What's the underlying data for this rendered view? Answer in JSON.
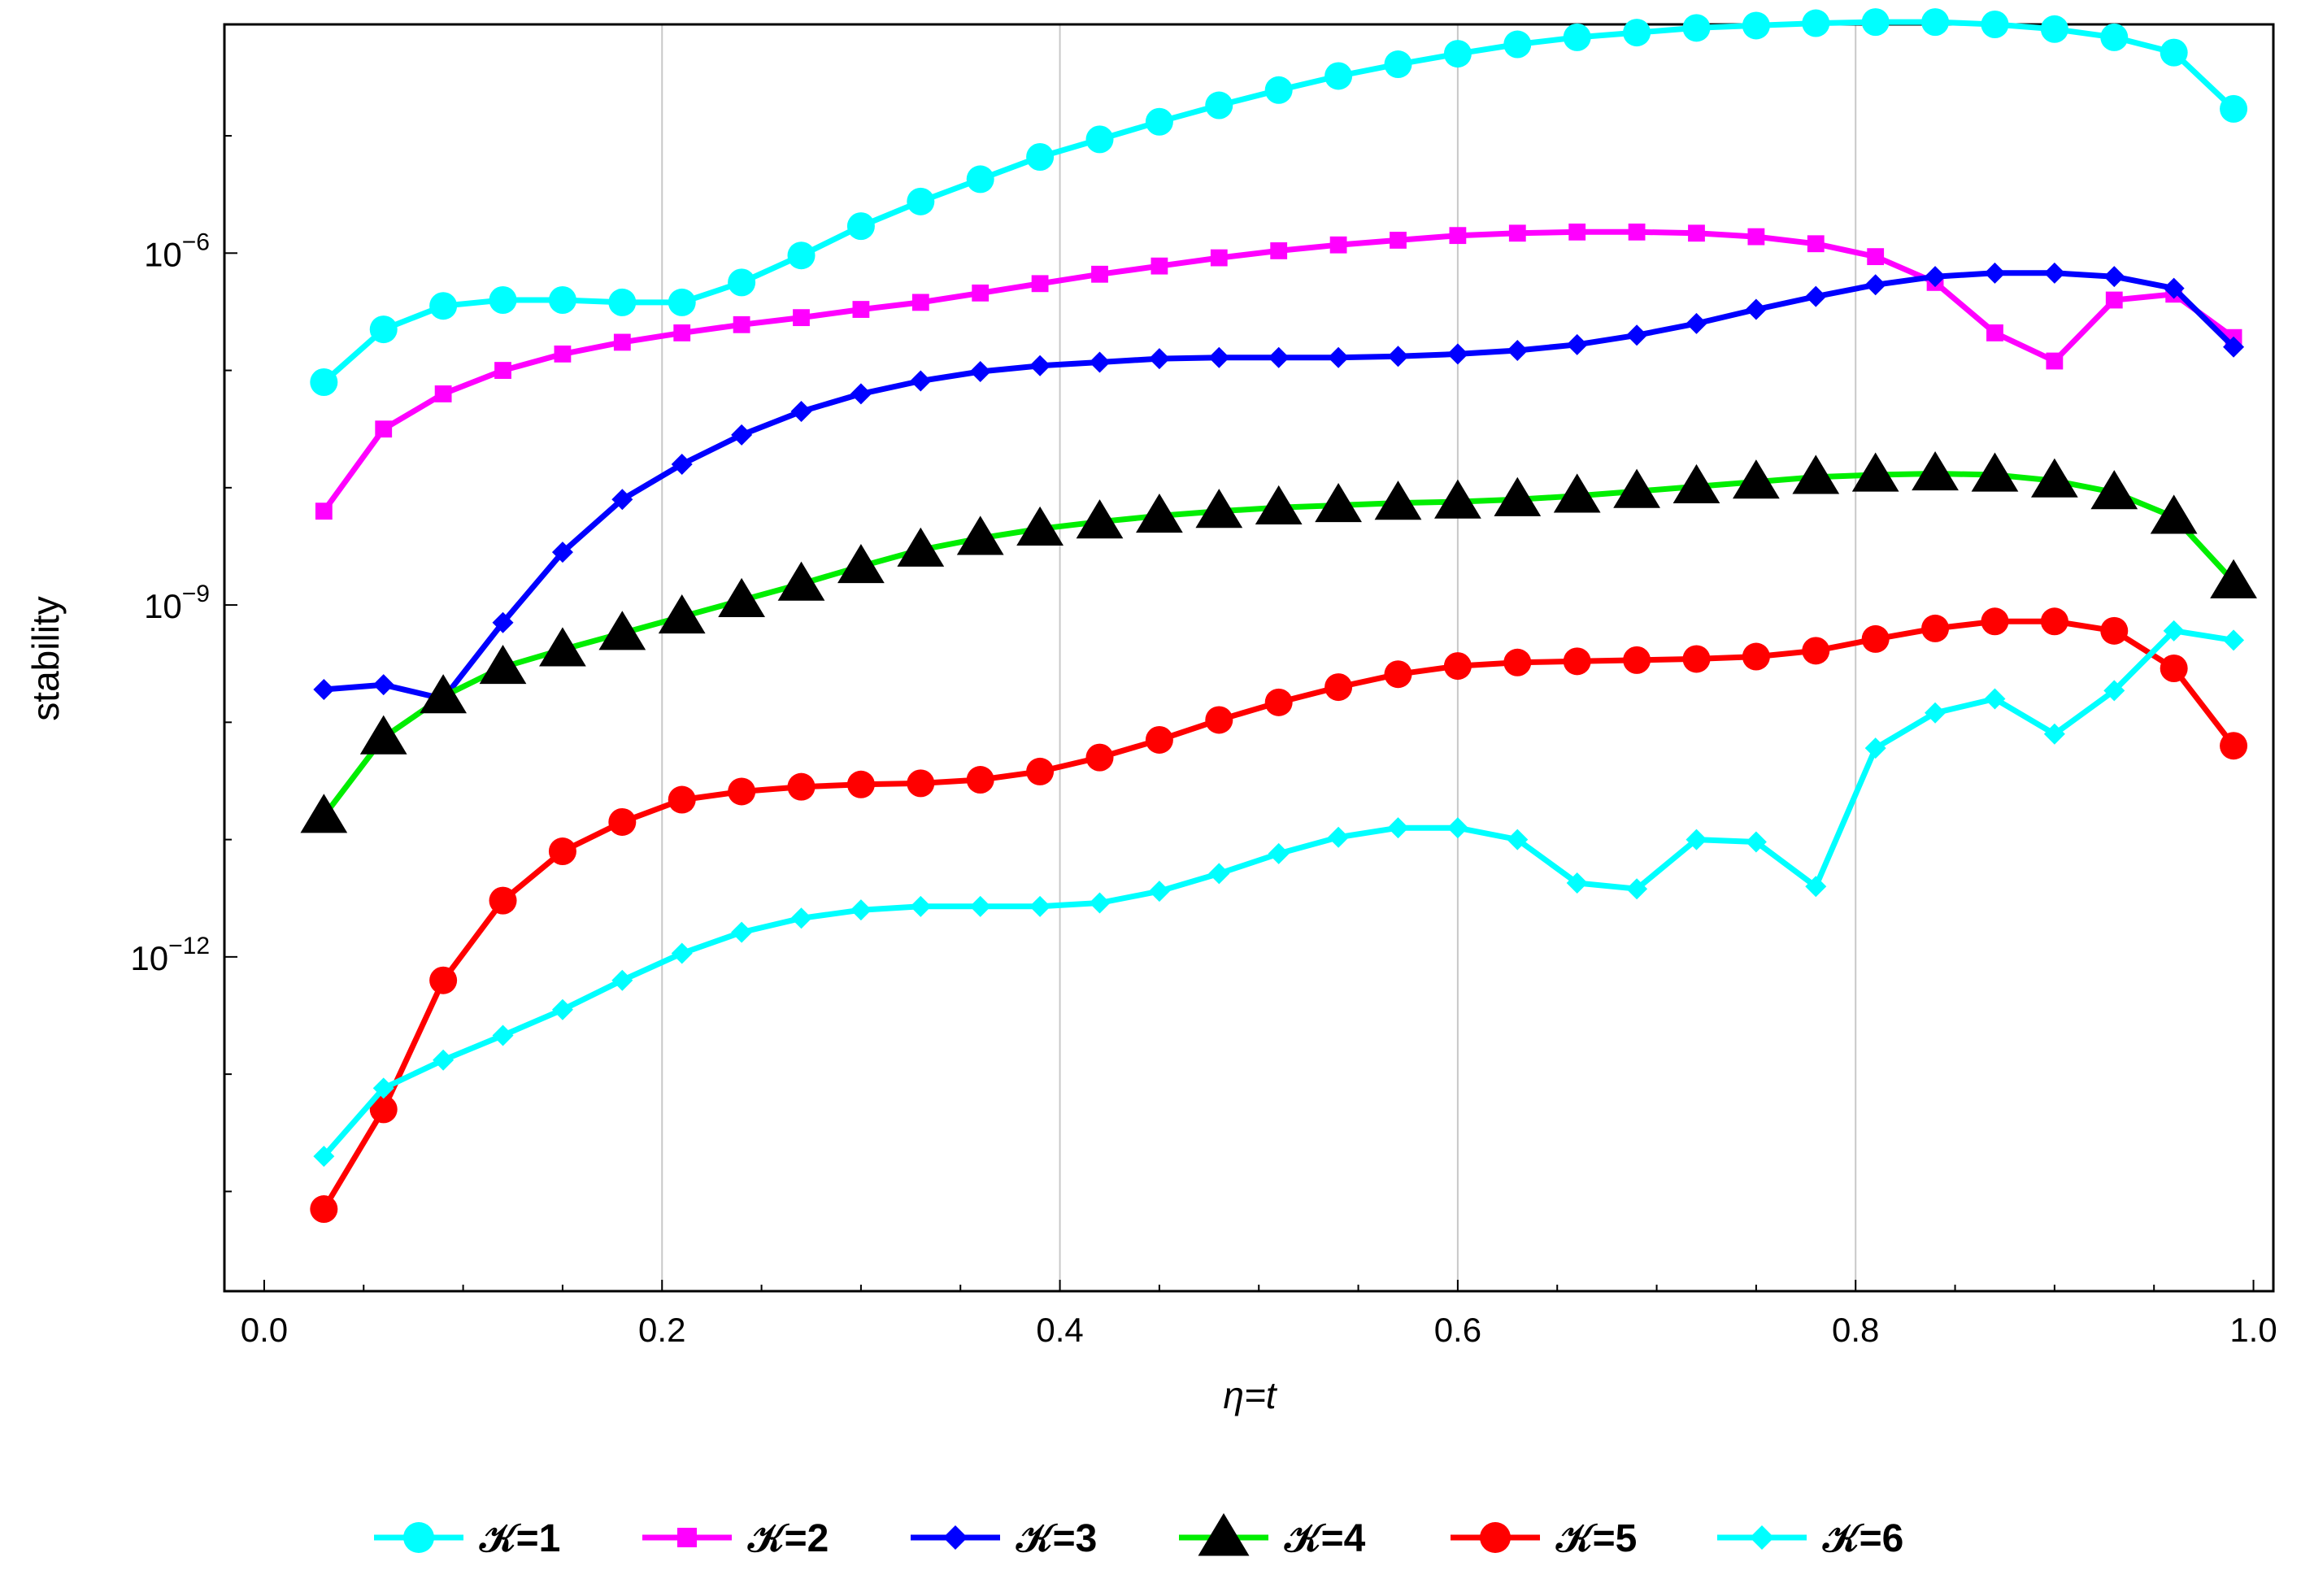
{
  "chart_data": {
    "type": "line",
    "title": "",
    "xlabel": "η=t",
    "ylabel": "stability",
    "y_scale": "log",
    "xlim": [
      -0.02,
      1.01
    ],
    "ylim_log10": [
      -14.85,
      -4.05
    ],
    "grid": "vertical",
    "legend_position": "bottom",
    "x_ticks": [
      {
        "value": 0.0,
        "label": "0.0"
      },
      {
        "value": 0.2,
        "label": "0.2"
      },
      {
        "value": 0.4,
        "label": "0.4"
      },
      {
        "value": 0.6,
        "label": "0.6"
      },
      {
        "value": 0.8,
        "label": "0.8"
      },
      {
        "value": 1.0,
        "label": "1.0"
      }
    ],
    "y_major_ticks": [
      {
        "exp": -6,
        "base": "10",
        "sup": "−6"
      },
      {
        "exp": -9,
        "base": "10",
        "sup": "−9"
      },
      {
        "exp": -12,
        "base": "10",
        "sup": "−12"
      }
    ],
    "y_minor_ticks_log10": [
      -5,
      -7,
      -8,
      -10,
      -11,
      -13,
      -14
    ],
    "x": [
      0.03,
      0.06,
      0.09,
      0.12,
      0.15,
      0.18,
      0.21,
      0.24,
      0.27,
      0.3,
      0.33,
      0.36,
      0.39,
      0.42,
      0.45,
      0.48,
      0.51,
      0.54,
      0.57,
      0.6,
      0.63,
      0.66,
      0.69,
      0.72,
      0.75,
      0.78,
      0.81,
      0.84,
      0.87,
      0.9,
      0.93,
      0.96,
      0.99
    ],
    "series": [
      {
        "name": "𝒦=1",
        "color": "#00FFFF",
        "marker": "circle",
        "log10_values": [
          -7.1,
          -6.65,
          -6.45,
          -6.4,
          -6.4,
          -6.42,
          -6.42,
          -6.25,
          -6.02,
          -5.77,
          -5.56,
          -5.37,
          -5.18,
          -5.03,
          -4.88,
          -4.74,
          -4.61,
          -4.49,
          -4.39,
          -4.3,
          -4.22,
          -4.16,
          -4.12,
          -4.08,
          -4.06,
          -4.04,
          -4.03,
          -4.03,
          -4.05,
          -4.09,
          -4.16,
          -4.29,
          -4.77
        ]
      },
      {
        "name": "𝒦=2",
        "color": "#FF00FF",
        "marker": "square",
        "log10_values": [
          -8.2,
          -7.5,
          -7.2,
          -7.0,
          -6.86,
          -6.76,
          -6.68,
          -6.61,
          -6.55,
          -6.48,
          -6.42,
          -6.34,
          -6.26,
          -6.18,
          -6.11,
          -6.04,
          -5.98,
          -5.93,
          -5.89,
          -5.85,
          -5.83,
          -5.82,
          -5.82,
          -5.83,
          -5.86,
          -5.92,
          -6.03,
          -6.25,
          -6.68,
          -6.92,
          -6.4,
          -6.35,
          -6.72
        ]
      },
      {
        "name": "𝒦=3",
        "color": "#0000FF",
        "marker": "diamond",
        "log10_values": [
          -9.72,
          -9.68,
          -9.8,
          -9.15,
          -8.55,
          -8.1,
          -7.8,
          -7.55,
          -7.35,
          -7.2,
          -7.09,
          -7.01,
          -6.96,
          -6.93,
          -6.9,
          -6.89,
          -6.89,
          -6.89,
          -6.88,
          -6.86,
          -6.83,
          -6.78,
          -6.7,
          -6.6,
          -6.48,
          -6.37,
          -6.27,
          -6.2,
          -6.17,
          -6.17,
          -6.2,
          -6.3,
          -6.8
        ]
      },
      {
        "name": "𝒦=4",
        "color": "#00EE00",
        "marker_fill": "#000000",
        "marker": "triangle",
        "log10_values": [
          -10.8,
          -10.13,
          -9.78,
          -9.53,
          -9.38,
          -9.24,
          -9.1,
          -8.96,
          -8.82,
          -8.67,
          -8.53,
          -8.43,
          -8.35,
          -8.29,
          -8.24,
          -8.2,
          -8.17,
          -8.15,
          -8.13,
          -8.12,
          -8.1,
          -8.07,
          -8.03,
          -7.99,
          -7.95,
          -7.91,
          -7.89,
          -7.88,
          -7.89,
          -7.94,
          -8.04,
          -8.25,
          -8.8
        ]
      },
      {
        "name": "𝒦=5",
        "color": "#FF0000",
        "marker": "circle",
        "log10_values": [
          -14.15,
          -13.3,
          -12.2,
          -11.52,
          -11.1,
          -10.85,
          -10.66,
          -10.59,
          -10.55,
          -10.53,
          -10.52,
          -10.49,
          -10.42,
          -10.3,
          -10.15,
          -9.98,
          -9.83,
          -9.7,
          -9.59,
          -9.52,
          -9.49,
          -9.48,
          -9.47,
          -9.46,
          -9.44,
          -9.39,
          -9.29,
          -9.2,
          -9.14,
          -9.14,
          -9.22,
          -9.54,
          -10.2
        ]
      },
      {
        "name": "𝒦=6",
        "color": "#00FFFF",
        "marker": "diamond",
        "log10_values": [
          -13.7,
          -13.12,
          -12.88,
          -12.67,
          -12.45,
          -12.2,
          -11.97,
          -11.79,
          -11.67,
          -11.6,
          -11.57,
          -11.57,
          -11.57,
          -11.54,
          -11.44,
          -11.29,
          -11.12,
          -10.98,
          -10.9,
          -10.9,
          -11.0,
          -11.37,
          -11.42,
          -11.0,
          -11.02,
          -11.4,
          -10.22,
          -9.92,
          -9.8,
          -10.1,
          -9.73,
          -9.22,
          -9.3
        ]
      }
    ]
  }
}
